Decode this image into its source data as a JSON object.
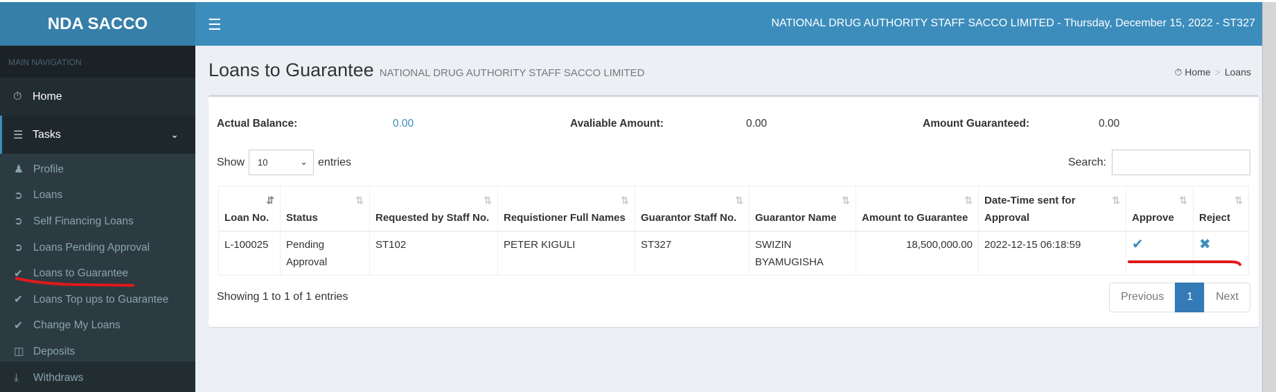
{
  "logo": "NDA SACCO",
  "header": {
    "title": "NATIONAL DRUG AUTHORITY STAFF SACCO LIMITED - Thursday, December 15, 2022 - ST327"
  },
  "sidebar": {
    "section": "MAIN NAVIGATION",
    "home": "Home",
    "tasks": "Tasks",
    "items": [
      {
        "label": "Profile",
        "icon": "user-icon"
      },
      {
        "label": "Loans",
        "icon": "sign-in-icon"
      },
      {
        "label": "Self Financing Loans",
        "icon": "sign-in-icon"
      },
      {
        "label": "Loans Pending Approval",
        "icon": "sign-in-icon"
      },
      {
        "label": "Loans to Guarantee",
        "icon": "check-icon"
      },
      {
        "label": "Loans Top ups to Guarantee",
        "icon": "check-icon"
      },
      {
        "label": "Change My Loans",
        "icon": "check-icon"
      },
      {
        "label": "Deposits",
        "icon": "money-icon"
      },
      {
        "label": "Withdraws",
        "icon": "download-icon"
      }
    ]
  },
  "page": {
    "title": "Loans to Guarantee",
    "subtitle": "NATIONAL DRUG AUTHORITY STAFF SACCO LIMITED",
    "breadcrumb": [
      "Home",
      "Loans"
    ]
  },
  "summary": {
    "actual_label": "Actual Balance:",
    "actual": "0.00",
    "avail_label": "Avaliable Amount:",
    "avail": "0.00",
    "guar_label": "Amount Guaranteed:",
    "guar": "0.00"
  },
  "table_controls": {
    "show": "Show",
    "entries": "entries",
    "page_size": "10",
    "search": "Search:",
    "search_value": ""
  },
  "table": {
    "headers": [
      "Loan No.",
      "Status",
      "Requested by Staff No.",
      "Requistioner Full Names",
      "Guarantor Staff No.",
      "Guarantor Name",
      "Amount to Guarantee",
      "Date-Time sent for Approval",
      "Approve",
      "Reject"
    ],
    "rows": [
      [
        "L-100025",
        "Pending Approval",
        "ST102",
        "PETER KIGULI",
        "ST327",
        "SWIZIN BYAMUGISHA",
        "18,500,000.00",
        "2022-12-15 06:18:59"
      ]
    ]
  },
  "footer": {
    "info": "Showing 1 to 1 of 1 entries",
    "prev": "Previous",
    "page": "1",
    "next": "Next"
  },
  "colors": {
    "header": "#3c8dbc",
    "logo": "#367fa9",
    "sidebar": "#222d32",
    "annotation": "#e0191b"
  }
}
